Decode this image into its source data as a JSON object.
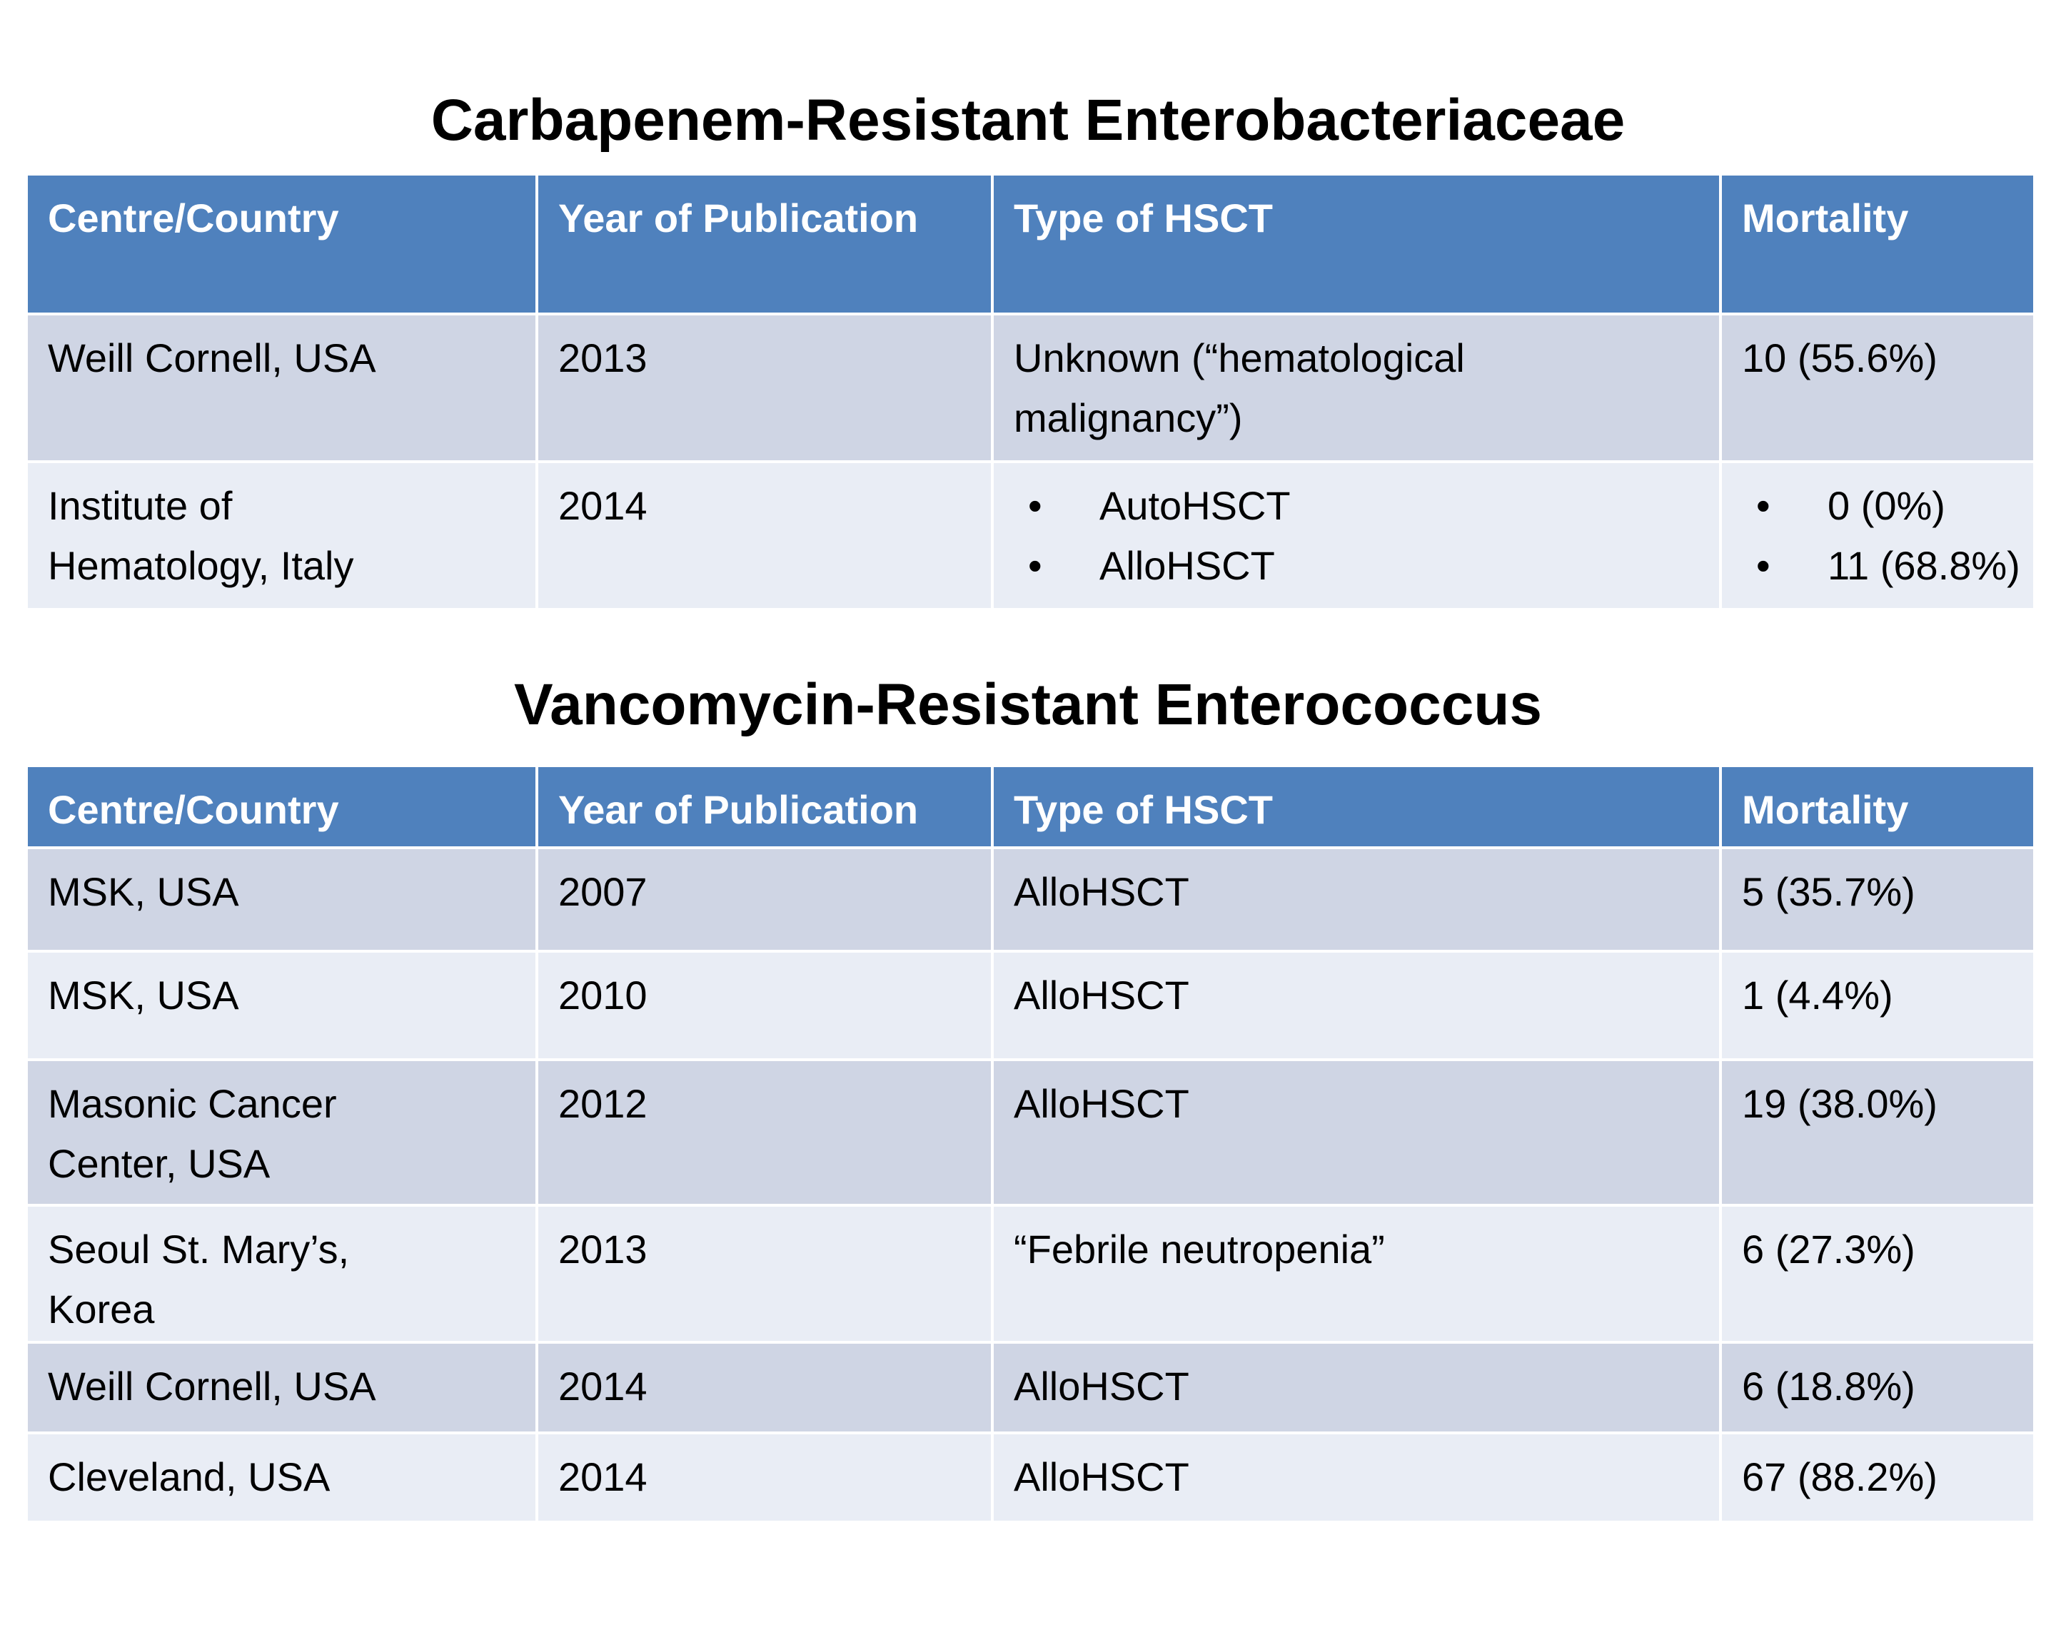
{
  "bullet": "•",
  "colors": {
    "header_bg": "#4F81BD",
    "header_text": "#FFFFFF",
    "row_dark": "#CFD5E4",
    "row_light": "#E9EDF5",
    "border": "#FFFFFF",
    "title_text": "#000000",
    "body_text": "#000000"
  },
  "tables": [
    {
      "title": "Carbapenem-Resistant Enterobacteriaceae",
      "columns": [
        "Centre/Country",
        "Year of Publication",
        "Type of HSCT",
        "Mortality"
      ],
      "rows": [
        {
          "centre": [
            "Weill Cornell, USA"
          ],
          "year": [
            "2013"
          ],
          "type": [
            "Unknown (“hematological",
            "malignancy”)"
          ],
          "mortality": [
            "10 (55.6%)"
          ]
        },
        {
          "centre": [
            "Institute of",
            "Hematology, Italy"
          ],
          "year": [
            "2014"
          ],
          "type": [
            "AutoHSCT",
            "AlloHSCT"
          ],
          "mortality": [
            "0 (0%)",
            "11 (68.8%)"
          ]
        }
      ]
    },
    {
      "title": "Vancomycin-Resistant Enterococcus",
      "columns": [
        "Centre/Country",
        "Year of Publication",
        "Type of HSCT",
        "Mortality"
      ],
      "rows": [
        {
          "centre": [
            "MSK, USA"
          ],
          "year": [
            "2007"
          ],
          "type": [
            "AlloHSCT"
          ],
          "mortality": [
            "5 (35.7%)"
          ]
        },
        {
          "centre": [
            "MSK, USA"
          ],
          "year": [
            "2010"
          ],
          "type": [
            "AlloHSCT"
          ],
          "mortality": [
            "1 (4.4%)"
          ]
        },
        {
          "centre": [
            "Masonic Cancer",
            "Center, USA"
          ],
          "year": [
            "2012"
          ],
          "type": [
            "AlloHSCT"
          ],
          "mortality": [
            "19 (38.0%)"
          ]
        },
        {
          "centre": [
            "Seoul St. Mary’s,",
            "Korea"
          ],
          "year": [
            "2013"
          ],
          "type": [
            "“Febrile neutropenia”"
          ],
          "mortality": [
            "6 (27.3%)"
          ]
        },
        {
          "centre": [
            "Weill Cornell, USA"
          ],
          "year": [
            "2014"
          ],
          "type": [
            "AlloHSCT"
          ],
          "mortality": [
            "6 (18.8%)"
          ]
        },
        {
          "centre": [
            "Cleveland, USA"
          ],
          "year": [
            "2014"
          ],
          "type": [
            "AlloHSCT"
          ],
          "mortality": [
            "67 (88.2%)"
          ]
        }
      ]
    }
  ]
}
